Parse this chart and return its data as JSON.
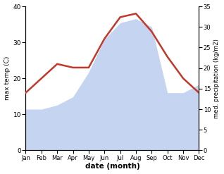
{
  "months": [
    "Jan",
    "Feb",
    "Mar",
    "Apr",
    "May",
    "Jun",
    "Jul",
    "Aug",
    "Sep",
    "Oct",
    "Nov",
    "Dec"
  ],
  "temperature": [
    16,
    20,
    24,
    23,
    23,
    31,
    37,
    38,
    33,
    26,
    20,
    16
  ],
  "precipitation": [
    10,
    10,
    11,
    13,
    19,
    27,
    31,
    32,
    30,
    14,
    14,
    16
  ],
  "temp_color": "#c0392b",
  "precip_color": "#c5d4f0",
  "background_color": "#ffffff",
  "ylabel_left": "max temp (C)",
  "ylabel_right": "med. precipitation (kg/m2)",
  "xlabel": "date (month)",
  "ylim_left": [
    0,
    40
  ],
  "ylim_right": [
    0,
    35
  ],
  "yticks_left": [
    0,
    10,
    20,
    30,
    40
  ],
  "yticks_right": [
    0,
    5,
    10,
    15,
    20,
    25,
    30,
    35
  ],
  "temp_linewidth": 1.8
}
